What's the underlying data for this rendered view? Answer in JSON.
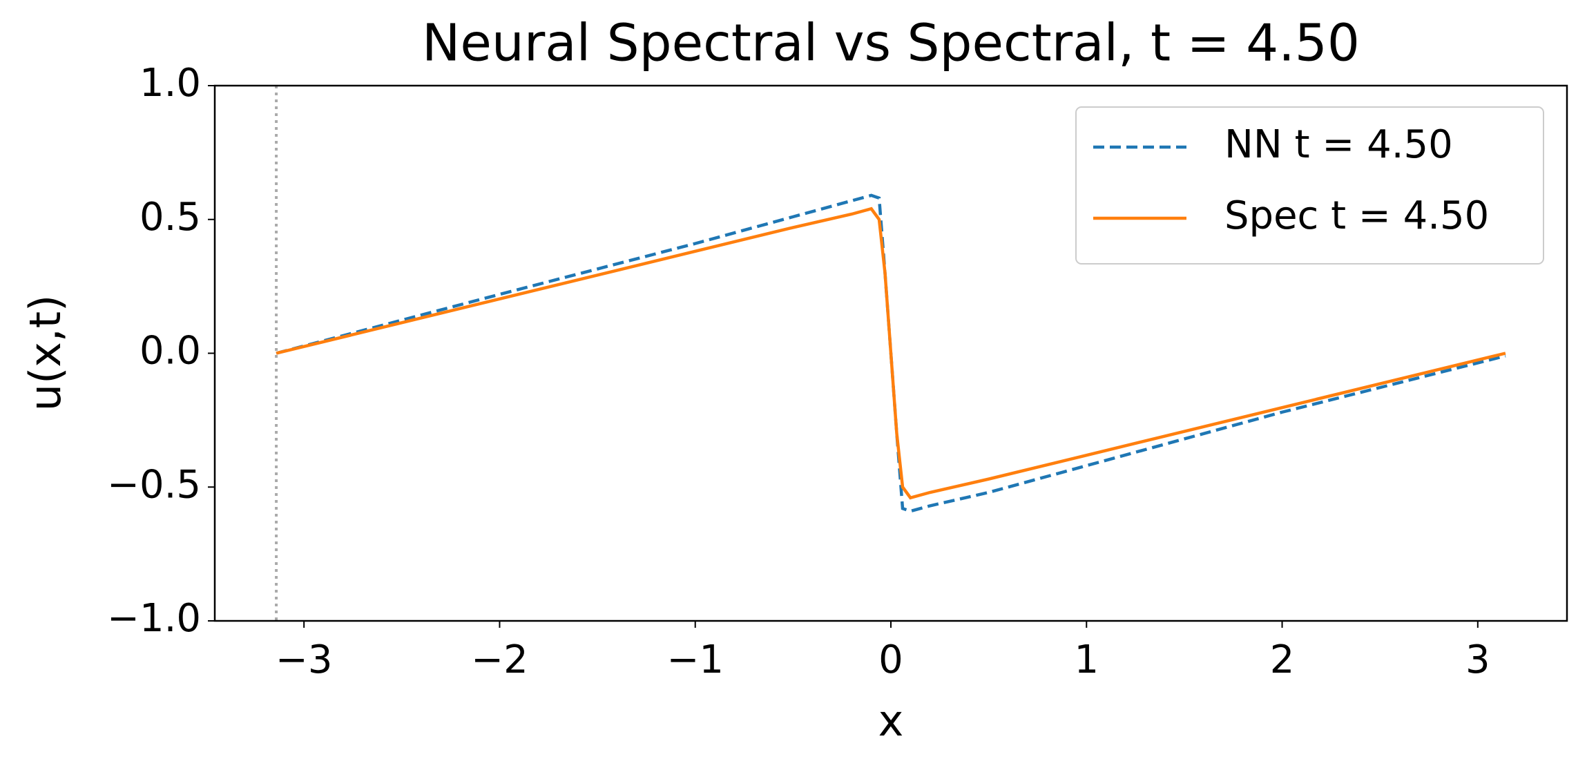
{
  "chart_data": {
    "type": "line",
    "title": "Neural Spectral vs Spectral, t = 4.50",
    "xlabel": "x",
    "ylabel": "u(x,t)",
    "x": [
      -3.1416,
      -2,
      -1,
      -0.5,
      -0.2,
      -0.1,
      -0.06,
      -0.03,
      0,
      0.03,
      0.06,
      0.1,
      0.2,
      0.5,
      1,
      2,
      3.1416
    ],
    "series": [
      {
        "name": "NN t = 4.50",
        "color": "#1f77b4",
        "dashed": true,
        "values": [
          0,
          0.22,
          0.41,
          0.51,
          0.57,
          0.59,
          0.58,
          0.3,
          0,
          -0.3,
          -0.58,
          -0.59,
          -0.57,
          -0.52,
          -0.42,
          -0.22,
          -0.01
        ]
      },
      {
        "name": "Spec t = 4.50",
        "color": "#ff7f0e",
        "dashed": false,
        "values": [
          0,
          0.203,
          0.381,
          0.47,
          0.52,
          0.54,
          0.5,
          0.3,
          0,
          -0.3,
          -0.5,
          -0.54,
          -0.52,
          -0.47,
          -0.381,
          -0.203,
          0
        ]
      }
    ],
    "vline": -3.1416,
    "vline_color": "#aaaaaa",
    "xlim": [
      -3.456,
      3.456
    ],
    "ylim": [
      -1,
      1
    ],
    "xticks": [
      {
        "value": -3,
        "label": "−3"
      },
      {
        "value": -2,
        "label": "−2"
      },
      {
        "value": -1,
        "label": "−1"
      },
      0,
      1,
      2,
      3
    ],
    "yticks": [
      {
        "value": -1,
        "label": "−1.0"
      },
      {
        "value": -0.5,
        "label": "−0.5"
      },
      {
        "value": 0,
        "label": "0.0"
      },
      0.5,
      {
        "value": 1,
        "label": "1.0"
      }
    ],
    "grid": false,
    "legend": "upper right"
  }
}
